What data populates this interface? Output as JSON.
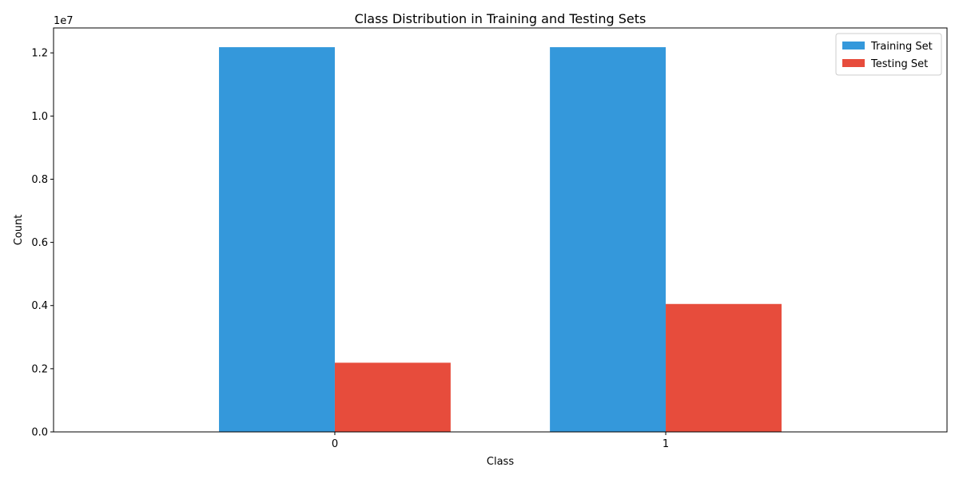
{
  "chart_data": {
    "type": "bar",
    "title": "Class Distribution in Training and Testing Sets",
    "xlabel": "Class",
    "ylabel": "Count",
    "y_scale_label": "1e7",
    "categories": [
      "0",
      "1"
    ],
    "series": [
      {
        "name": "Training Set",
        "color": "#3498db",
        "values": [
          12180000,
          12180000
        ]
      },
      {
        "name": "Testing Set",
        "color": "#e74c3c",
        "values": [
          2190000,
          4050000
        ]
      }
    ],
    "ylim": [
      0,
      12789000
    ],
    "yticks": [
      0,
      2000000,
      4000000,
      6000000,
      8000000,
      10000000,
      12000000
    ],
    "ytick_labels": [
      "0.0",
      "0.2",
      "0.4",
      "0.6",
      "0.8",
      "1.0",
      "1.2"
    ],
    "legend_position": "top-right",
    "grid": false
  }
}
